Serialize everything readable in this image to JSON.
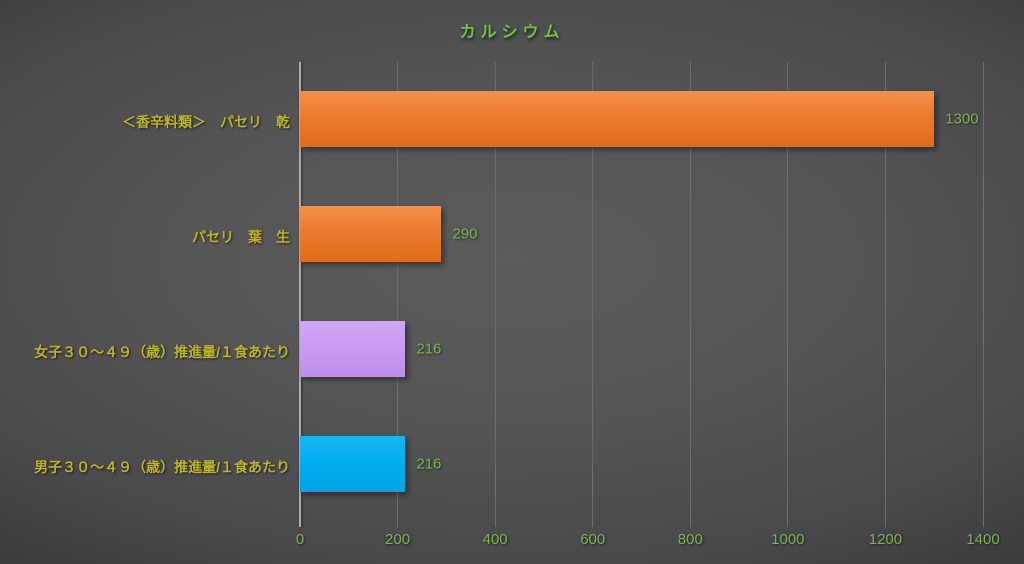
{
  "chart_data": {
    "type": "bar",
    "orientation": "horizontal",
    "title": "カルシウム",
    "categories": [
      "＜香辛料類＞　パセリ　乾",
      "パセリ　葉　生",
      "女子３０～４９（歳）推進量/１食あたり",
      "男子３０～４９（歳）推進量/１食あたり"
    ],
    "values": [
      1300,
      290,
      216,
      216
    ],
    "value_labels": [
      "1300",
      "290",
      "216",
      "216"
    ],
    "bar_colors": [
      "#ED7D31",
      "#ED7D31",
      "#C9A0F0",
      "#00AEEF"
    ],
    "bar_gradients": [
      [
        "#F2914B",
        "#EC7B2E",
        "#E06C18"
      ],
      [
        "#F2914B",
        "#EC7B2E",
        "#E06C18"
      ],
      [
        "#D0A7F7",
        "#C99CF2",
        "#BE8FEA"
      ],
      [
        "#1CB4F2",
        "#00AEEF",
        "#00A3E2"
      ]
    ],
    "xlabel": "",
    "ylabel": "",
    "xlim": [
      0,
      1400
    ],
    "x_ticks": [
      0,
      200,
      400,
      600,
      800,
      1000,
      1200,
      1400
    ],
    "grid": true,
    "legend": false,
    "colors": {
      "title_text": "#72C046",
      "category_text": "#BCB427",
      "value_text": "#7CB34E",
      "tick_text": "#7CB34E",
      "axis_line": "#ACACAC",
      "gridline": "#6C6C6E"
    }
  }
}
